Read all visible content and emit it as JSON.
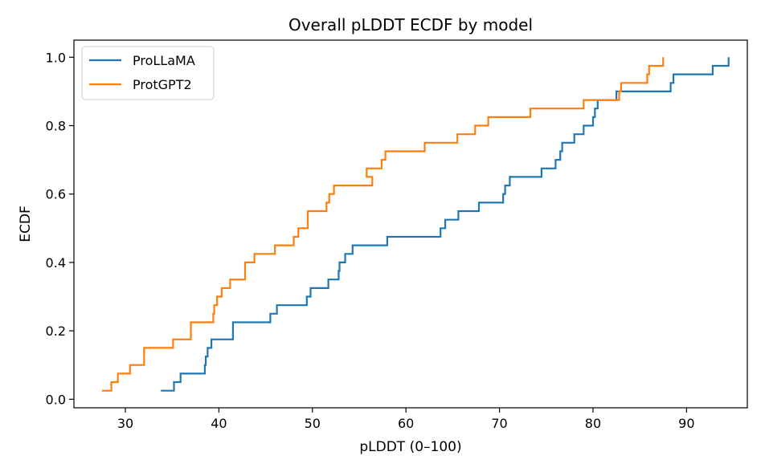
{
  "chart_data": {
    "type": "line",
    "step": true,
    "title": "Overall pLDDT ECDF by model",
    "xlabel": "pLDDT (0–100)",
    "ylabel": "ECDF",
    "xlim": [
      24.5,
      96.5
    ],
    "ylim": [
      -0.025,
      1.05
    ],
    "x_ticks": [
      30,
      40,
      50,
      60,
      70,
      80,
      90
    ],
    "y_ticks": [
      0.0,
      0.2,
      0.4,
      0.6,
      0.8,
      1.0
    ],
    "x_tick_labels": [
      "30",
      "40",
      "50",
      "60",
      "70",
      "80",
      "90"
    ],
    "y_tick_labels": [
      "0.0",
      "0.2",
      "0.4",
      "0.6",
      "0.8",
      "1.0"
    ],
    "grid": false,
    "legend_position": "top-left",
    "series": [
      {
        "name": "ProLLaMA",
        "color": "#1f77b4",
        "x": [
          33.8,
          35.2,
          35.9,
          38.5,
          38.6,
          38.8,
          39.2,
          41.5,
          45.5,
          46.2,
          49.4,
          49.8,
          51.7,
          52.8,
          52.9,
          53.5,
          54.3,
          58.0,
          63.7,
          64.2,
          65.6,
          67.8,
          70.4,
          70.6,
          71.1,
          74.5,
          76.0,
          76.5,
          76.7,
          78.0,
          79.0,
          80.0,
          80.2,
          80.5,
          82.5,
          83.0,
          88.3,
          88.6,
          92.8,
          94.5
        ],
        "y": [
          0.025,
          0.05,
          0.075,
          0.1,
          0.125,
          0.15,
          0.175,
          0.225,
          0.25,
          0.275,
          0.3,
          0.325,
          0.35,
          0.375,
          0.4,
          0.425,
          0.45,
          0.475,
          0.5,
          0.525,
          0.55,
          0.575,
          0.6,
          0.625,
          0.65,
          0.675,
          0.7,
          0.725,
          0.75,
          0.775,
          0.8,
          0.825,
          0.85,
          0.875,
          0.9,
          0.9,
          0.925,
          0.95,
          0.975,
          1.0
        ]
      },
      {
        "name": "ProtGPT2",
        "color": "#ff7f0e",
        "x": [
          27.5,
          28.5,
          29.2,
          30.5,
          32.0,
          35.1,
          37.0,
          39.4,
          39.5,
          39.8,
          40.3,
          41.2,
          42.8,
          43.8,
          46.0,
          48.0,
          48.5,
          49.5,
          51.5,
          51.8,
          52.1,
          52.3,
          56.4,
          55.8,
          56.7,
          57.4,
          57.8,
          62.0,
          65.5,
          67.4,
          68.8,
          73.3,
          79.0,
          82.8,
          83.0,
          85.8,
          86.0,
          87.5
        ],
        "y": [
          0.025,
          0.05,
          0.075,
          0.1,
          0.15,
          0.175,
          0.225,
          0.25,
          0.275,
          0.3,
          0.325,
          0.35,
          0.4,
          0.425,
          0.45,
          0.475,
          0.5,
          0.55,
          0.575,
          0.6,
          0.6,
          0.625,
          0.65,
          0.675,
          0.675,
          0.7,
          0.725,
          0.75,
          0.775,
          0.8,
          0.825,
          0.85,
          0.875,
          0.9,
          0.925,
          0.95,
          0.975,
          1.0
        ]
      }
    ]
  }
}
